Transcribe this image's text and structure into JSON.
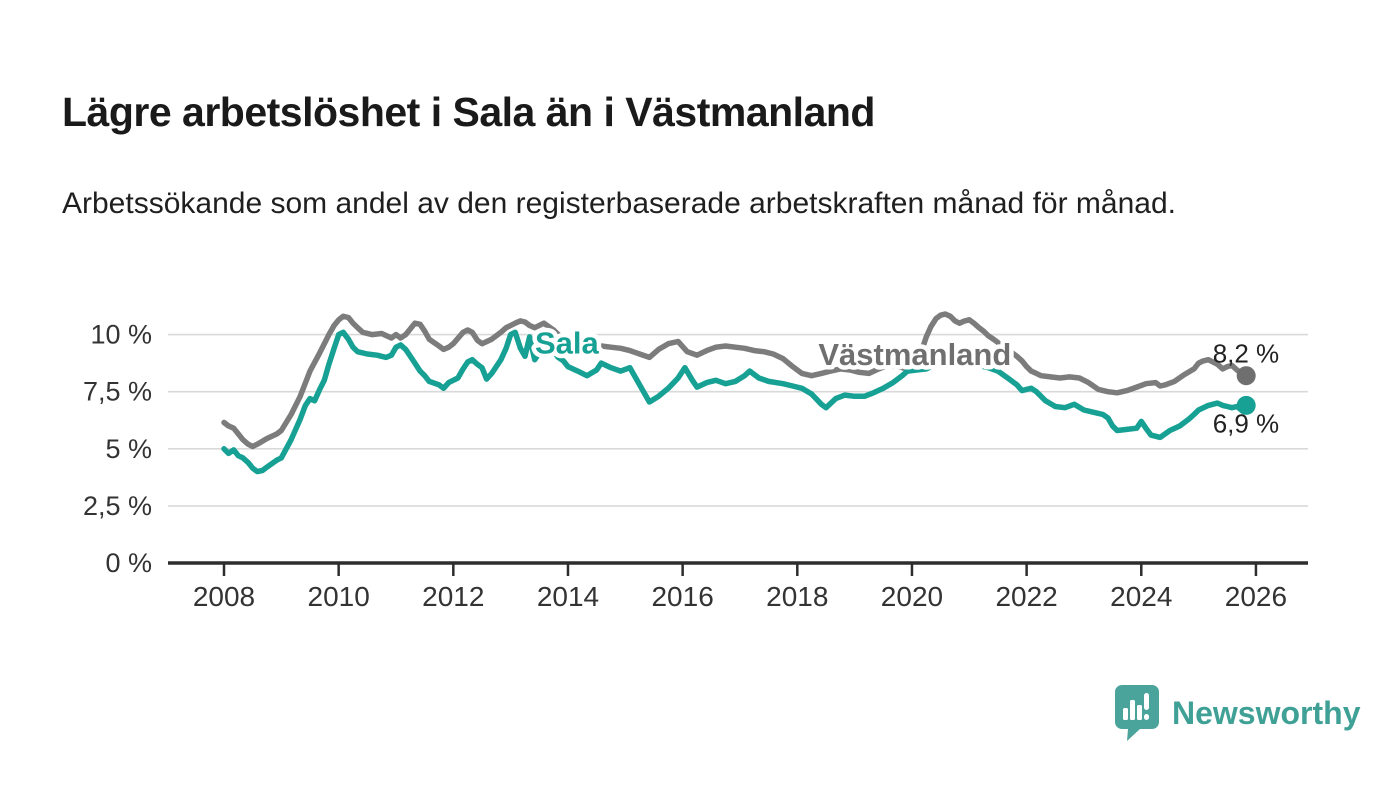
{
  "title": "Lägre arbetslöshet i Sala än i Västmanland",
  "subtitle": "Arbetssökande som andel av den registerbaserade arbetskraften månad för månad.",
  "footer": {
    "brand": "Newsworthy"
  },
  "colors": {
    "sala": "#16a194",
    "vastmanland": "#7c7c7c",
    "vastmanland_label": "#6f6f6f",
    "sala_dot": "#16a194",
    "vastmanland_dot": "#6f6f6f",
    "axis": "#2d2d2d",
    "grid": "#d9d9d9",
    "tick_text": "#333333",
    "value_label": "#222222",
    "background": "#ffffff",
    "logo_bubble": "#4ba49b",
    "logo_text": "#3fa096"
  },
  "chart_data": {
    "type": "line",
    "unit": "%",
    "grid": "horizontal",
    "legend": "inline-labels",
    "x_axis": {
      "ticks": [
        2008,
        2010,
        2012,
        2014,
        2016,
        2018,
        2020,
        2022,
        2024,
        2026
      ],
      "range": [
        2007.0,
        2026.9
      ]
    },
    "y_axis": {
      "tick_values": [
        0,
        2.5,
        5,
        7.5,
        10
      ],
      "tick_labels": [
        "0 %",
        "2,5 %",
        "5 %",
        "7,5 %",
        "10 %"
      ],
      "range": [
        0,
        11.5
      ]
    },
    "series": [
      {
        "name": "Västmanland",
        "color": "#7c7c7c",
        "label_color": "#6f6f6f",
        "label_pos": [
          2020.05,
          9.1
        ],
        "end_label": "8,2 %",
        "end_value": 8.2,
        "end_label_offset": [
          33,
          -13
        ],
        "points": [
          [
            2008.0,
            6.15
          ],
          [
            2008.08,
            6.0
          ],
          [
            2008.17,
            5.9
          ],
          [
            2008.33,
            5.4
          ],
          [
            2008.42,
            5.2
          ],
          [
            2008.5,
            5.1
          ],
          [
            2008.58,
            5.2
          ],
          [
            2008.75,
            5.45
          ],
          [
            2008.92,
            5.65
          ],
          [
            2009.0,
            5.8
          ],
          [
            2009.17,
            6.5
          ],
          [
            2009.33,
            7.3
          ],
          [
            2009.5,
            8.4
          ],
          [
            2009.67,
            9.2
          ],
          [
            2009.83,
            10.0
          ],
          [
            2009.92,
            10.4
          ],
          [
            2010.0,
            10.65
          ],
          [
            2010.08,
            10.8
          ],
          [
            2010.17,
            10.75
          ],
          [
            2010.25,
            10.5
          ],
          [
            2010.33,
            10.3
          ],
          [
            2010.42,
            10.1
          ],
          [
            2010.58,
            10.0
          ],
          [
            2010.75,
            10.05
          ],
          [
            2010.92,
            9.85
          ],
          [
            2011.0,
            10.0
          ],
          [
            2011.08,
            9.85
          ],
          [
            2011.17,
            10.0
          ],
          [
            2011.33,
            10.5
          ],
          [
            2011.42,
            10.45
          ],
          [
            2011.5,
            10.15
          ],
          [
            2011.58,
            9.8
          ],
          [
            2011.75,
            9.5
          ],
          [
            2011.83,
            9.35
          ],
          [
            2011.92,
            9.45
          ],
          [
            2012.0,
            9.6
          ],
          [
            2012.17,
            10.1
          ],
          [
            2012.25,
            10.2
          ],
          [
            2012.33,
            10.1
          ],
          [
            2012.42,
            9.75
          ],
          [
            2012.5,
            9.6
          ],
          [
            2012.67,
            9.8
          ],
          [
            2012.83,
            10.1
          ],
          [
            2012.92,
            10.3
          ],
          [
            2013.08,
            10.5
          ],
          [
            2013.17,
            10.6
          ],
          [
            2013.25,
            10.55
          ],
          [
            2013.33,
            10.4
          ],
          [
            2013.42,
            10.3
          ],
          [
            2013.58,
            10.5
          ],
          [
            2013.75,
            10.2
          ],
          [
            2013.83,
            10.0
          ],
          [
            2013.92,
            9.8
          ],
          [
            2014.0,
            9.6
          ],
          [
            2014.08,
            9.5
          ],
          [
            2014.25,
            9.5
          ],
          [
            2014.42,
            9.55
          ],
          [
            2014.58,
            9.5
          ],
          [
            2014.75,
            9.45
          ],
          [
            2014.92,
            9.4
          ],
          [
            2015.08,
            9.3
          ],
          [
            2015.25,
            9.15
          ],
          [
            2015.42,
            9.0
          ],
          [
            2015.58,
            9.35
          ],
          [
            2015.75,
            9.6
          ],
          [
            2015.92,
            9.7
          ],
          [
            2016.08,
            9.25
          ],
          [
            2016.25,
            9.1
          ],
          [
            2016.42,
            9.3
          ],
          [
            2016.58,
            9.45
          ],
          [
            2016.75,
            9.5
          ],
          [
            2016.92,
            9.45
          ],
          [
            2017.08,
            9.4
          ],
          [
            2017.25,
            9.3
          ],
          [
            2017.42,
            9.25
          ],
          [
            2017.58,
            9.15
          ],
          [
            2017.75,
            8.95
          ],
          [
            2017.92,
            8.6
          ],
          [
            2018.08,
            8.3
          ],
          [
            2018.25,
            8.2
          ],
          [
            2018.42,
            8.3
          ],
          [
            2018.58,
            8.4
          ],
          [
            2018.75,
            8.5
          ],
          [
            2018.92,
            8.45
          ],
          [
            2019.08,
            8.35
          ],
          [
            2019.25,
            8.3
          ],
          [
            2019.42,
            8.5
          ],
          [
            2019.58,
            8.65
          ],
          [
            2019.75,
            8.6
          ],
          [
            2019.92,
            8.5
          ],
          [
            2020.08,
            8.8
          ],
          [
            2020.17,
            9.3
          ],
          [
            2020.25,
            9.9
          ],
          [
            2020.33,
            10.35
          ],
          [
            2020.42,
            10.7
          ],
          [
            2020.5,
            10.85
          ],
          [
            2020.58,
            10.9
          ],
          [
            2020.67,
            10.8
          ],
          [
            2020.75,
            10.6
          ],
          [
            2020.83,
            10.5
          ],
          [
            2020.92,
            10.6
          ],
          [
            2021.0,
            10.65
          ],
          [
            2021.08,
            10.5
          ],
          [
            2021.17,
            10.3
          ],
          [
            2021.25,
            10.15
          ],
          [
            2021.33,
            9.95
          ],
          [
            2021.42,
            9.8
          ],
          [
            2021.5,
            9.65
          ],
          [
            2021.58,
            9.4
          ],
          [
            2021.67,
            9.3
          ],
          [
            2021.75,
            9.2
          ],
          [
            2021.83,
            9.05
          ],
          [
            2021.92,
            8.85
          ],
          [
            2022.0,
            8.6
          ],
          [
            2022.08,
            8.4
          ],
          [
            2022.17,
            8.3
          ],
          [
            2022.25,
            8.2
          ],
          [
            2022.42,
            8.15
          ],
          [
            2022.58,
            8.1
          ],
          [
            2022.75,
            8.15
          ],
          [
            2022.92,
            8.1
          ],
          [
            2023.08,
            7.9
          ],
          [
            2023.25,
            7.6
          ],
          [
            2023.42,
            7.5
          ],
          [
            2023.58,
            7.45
          ],
          [
            2023.75,
            7.55
          ],
          [
            2023.92,
            7.7
          ],
          [
            2024.08,
            7.85
          ],
          [
            2024.25,
            7.9
          ],
          [
            2024.33,
            7.75
          ],
          [
            2024.42,
            7.8
          ],
          [
            2024.58,
            7.95
          ],
          [
            2024.75,
            8.25
          ],
          [
            2024.92,
            8.5
          ],
          [
            2025.0,
            8.75
          ],
          [
            2025.08,
            8.85
          ],
          [
            2025.17,
            8.9
          ],
          [
            2025.33,
            8.7
          ],
          [
            2025.42,
            8.5
          ],
          [
            2025.5,
            8.6
          ],
          [
            2025.58,
            8.65
          ],
          [
            2025.67,
            8.45
          ],
          [
            2025.75,
            8.3
          ],
          [
            2025.83,
            8.2
          ]
        ]
      },
      {
        "name": "Sala",
        "color": "#16a194",
        "label_color": "#16a194",
        "label_pos": [
          2013.98,
          9.62
        ],
        "end_label": "6,9 %",
        "end_value": 6.9,
        "end_label_offset": [
          33,
          27
        ],
        "points": [
          [
            2008.0,
            5.0
          ],
          [
            2008.08,
            4.8
          ],
          [
            2008.17,
            4.95
          ],
          [
            2008.25,
            4.7
          ],
          [
            2008.33,
            4.6
          ],
          [
            2008.42,
            4.4
          ],
          [
            2008.5,
            4.15
          ],
          [
            2008.58,
            4.0
          ],
          [
            2008.67,
            4.05
          ],
          [
            2008.75,
            4.2
          ],
          [
            2008.92,
            4.5
          ],
          [
            2009.0,
            4.6
          ],
          [
            2009.17,
            5.4
          ],
          [
            2009.33,
            6.3
          ],
          [
            2009.42,
            6.9
          ],
          [
            2009.5,
            7.2
          ],
          [
            2009.58,
            7.1
          ],
          [
            2009.67,
            7.6
          ],
          [
            2009.75,
            8.0
          ],
          [
            2009.83,
            8.7
          ],
          [
            2009.92,
            9.4
          ],
          [
            2010.0,
            10.0
          ],
          [
            2010.08,
            10.1
          ],
          [
            2010.17,
            9.8
          ],
          [
            2010.25,
            9.45
          ],
          [
            2010.33,
            9.25
          ],
          [
            2010.5,
            9.15
          ],
          [
            2010.67,
            9.1
          ],
          [
            2010.83,
            9.0
          ],
          [
            2010.92,
            9.1
          ],
          [
            2011.0,
            9.45
          ],
          [
            2011.08,
            9.55
          ],
          [
            2011.17,
            9.35
          ],
          [
            2011.33,
            8.75
          ],
          [
            2011.42,
            8.4
          ],
          [
            2011.5,
            8.2
          ],
          [
            2011.58,
            7.95
          ],
          [
            2011.75,
            7.8
          ],
          [
            2011.83,
            7.65
          ],
          [
            2011.92,
            7.9
          ],
          [
            2012.08,
            8.1
          ],
          [
            2012.17,
            8.5
          ],
          [
            2012.25,
            8.8
          ],
          [
            2012.33,
            8.9
          ],
          [
            2012.42,
            8.7
          ],
          [
            2012.5,
            8.55
          ],
          [
            2012.58,
            8.05
          ],
          [
            2012.67,
            8.3
          ],
          [
            2012.75,
            8.6
          ],
          [
            2012.83,
            8.9
          ],
          [
            2012.92,
            9.4
          ],
          [
            2013.0,
            10.0
          ],
          [
            2013.08,
            10.1
          ],
          [
            2013.17,
            9.4
          ],
          [
            2013.25,
            9.05
          ],
          [
            2013.33,
            9.9
          ],
          [
            2013.42,
            8.9
          ],
          [
            2013.5,
            9.2
          ],
          [
            2013.58,
            9.5
          ],
          [
            2013.67,
            9.6
          ],
          [
            2013.75,
            9.3
          ],
          [
            2013.83,
            9.0
          ],
          [
            2013.92,
            8.85
          ],
          [
            2014.0,
            8.6
          ],
          [
            2014.17,
            8.4
          ],
          [
            2014.33,
            8.2
          ],
          [
            2014.5,
            8.45
          ],
          [
            2014.58,
            8.75
          ],
          [
            2014.75,
            8.55
          ],
          [
            2014.92,
            8.4
          ],
          [
            2015.08,
            8.55
          ],
          [
            2015.25,
            7.8
          ],
          [
            2015.42,
            7.05
          ],
          [
            2015.58,
            7.3
          ],
          [
            2015.75,
            7.65
          ],
          [
            2015.92,
            8.1
          ],
          [
            2016.04,
            8.55
          ],
          [
            2016.17,
            8.0
          ],
          [
            2016.25,
            7.7
          ],
          [
            2016.42,
            7.9
          ],
          [
            2016.58,
            8.0
          ],
          [
            2016.75,
            7.85
          ],
          [
            2016.92,
            7.95
          ],
          [
            2017.08,
            8.2
          ],
          [
            2017.17,
            8.4
          ],
          [
            2017.33,
            8.1
          ],
          [
            2017.5,
            7.95
          ],
          [
            2017.75,
            7.85
          ],
          [
            2017.92,
            7.75
          ],
          [
            2018.08,
            7.65
          ],
          [
            2018.25,
            7.4
          ],
          [
            2018.42,
            6.95
          ],
          [
            2018.5,
            6.8
          ],
          [
            2018.67,
            7.2
          ],
          [
            2018.83,
            7.35
          ],
          [
            2019.0,
            7.3
          ],
          [
            2019.17,
            7.3
          ],
          [
            2019.33,
            7.45
          ],
          [
            2019.5,
            7.65
          ],
          [
            2019.67,
            7.9
          ],
          [
            2019.83,
            8.2
          ],
          [
            2019.92,
            8.4
          ],
          [
            2020.08,
            8.45
          ],
          [
            2020.25,
            8.5
          ],
          [
            2020.42,
            8.7
          ],
          [
            2020.58,
            8.9
          ],
          [
            2020.75,
            9.1
          ],
          [
            2020.92,
            9.2
          ],
          [
            2021.08,
            9.0
          ],
          [
            2021.25,
            8.6
          ],
          [
            2021.33,
            8.55
          ],
          [
            2021.5,
            8.4
          ],
          [
            2021.67,
            8.1
          ],
          [
            2021.83,
            7.8
          ],
          [
            2021.92,
            7.55
          ],
          [
            2022.08,
            7.65
          ],
          [
            2022.17,
            7.5
          ],
          [
            2022.33,
            7.1
          ],
          [
            2022.5,
            6.85
          ],
          [
            2022.67,
            6.8
          ],
          [
            2022.83,
            6.95
          ],
          [
            2023.0,
            6.7
          ],
          [
            2023.17,
            6.6
          ],
          [
            2023.33,
            6.5
          ],
          [
            2023.42,
            6.35
          ],
          [
            2023.5,
            6.0
          ],
          [
            2023.58,
            5.8
          ],
          [
            2023.75,
            5.85
          ],
          [
            2023.92,
            5.9
          ],
          [
            2024.0,
            6.2
          ],
          [
            2024.08,
            5.9
          ],
          [
            2024.17,
            5.6
          ],
          [
            2024.33,
            5.5
          ],
          [
            2024.5,
            5.8
          ],
          [
            2024.67,
            6.0
          ],
          [
            2024.83,
            6.3
          ],
          [
            2024.92,
            6.5
          ],
          [
            2025.0,
            6.7
          ],
          [
            2025.17,
            6.9
          ],
          [
            2025.33,
            7.0
          ],
          [
            2025.42,
            6.9
          ],
          [
            2025.5,
            6.85
          ],
          [
            2025.58,
            6.8
          ],
          [
            2025.67,
            6.85
          ],
          [
            2025.75,
            6.7
          ],
          [
            2025.83,
            6.9
          ]
        ]
      }
    ]
  }
}
